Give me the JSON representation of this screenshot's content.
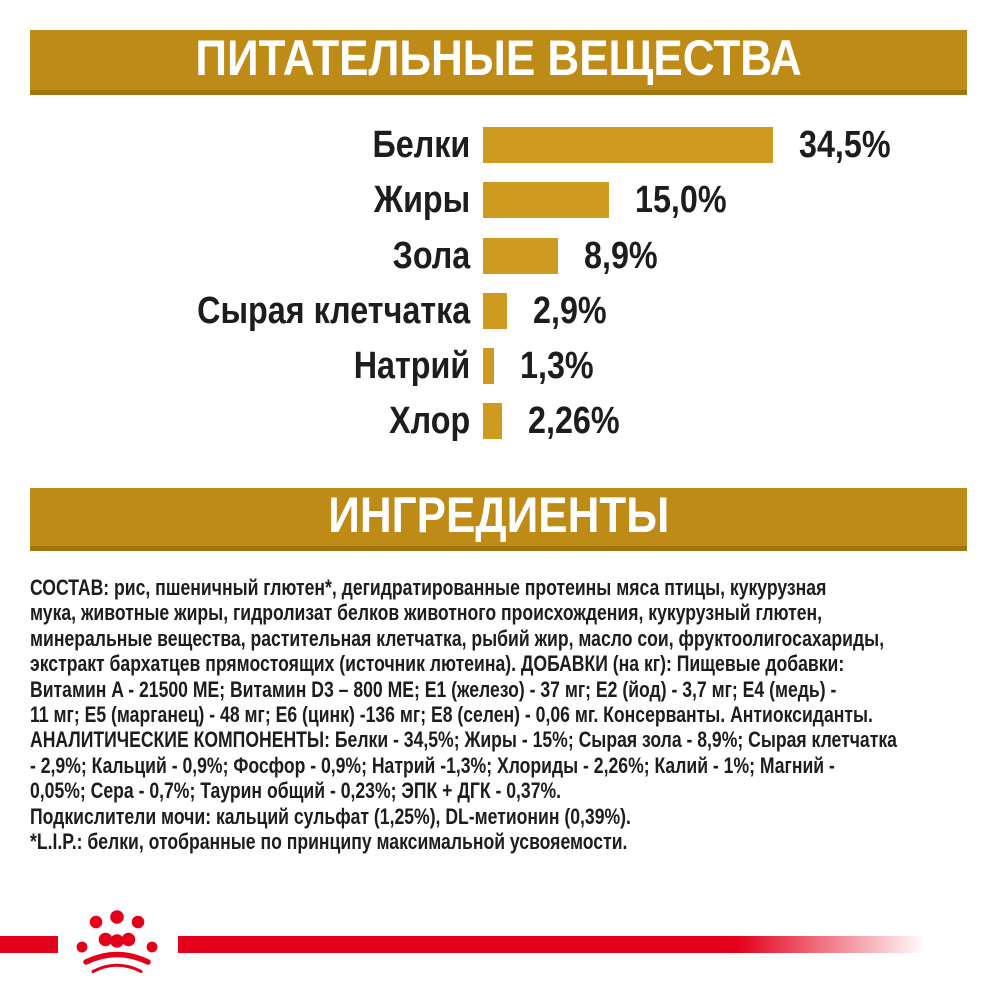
{
  "nutrients_banner": {
    "title": "ПИТАТЕЛЬНЫЕ ВЕЩЕСТВА"
  },
  "ingredients_banner": {
    "title": "ИНГРЕДИЕНТЫ"
  },
  "chart_data": {
    "type": "bar",
    "orientation": "horizontal",
    "title": "ПИТАТЕЛЬНЫЕ ВЕЩЕСТВА",
    "categories": [
      "Белки",
      "Жиры",
      "Зола",
      "Сырая клетчатка",
      "Натрий",
      "Хлор"
    ],
    "values": [
      34.5,
      15.0,
      8.9,
      2.9,
      1.3,
      2.26
    ],
    "value_labels": [
      "34,5%",
      "15,0%",
      "8,9%",
      "2,9%",
      "1,3%",
      "2,26%"
    ],
    "unit": "%",
    "xlim": [
      0,
      35
    ],
    "grid": false,
    "legend": "none",
    "bar_color": "#ce9a20"
  },
  "ingredients": {
    "text": "СОСТАВ: рис, пшеничный глютен*, дегидратированные протеины мяса птицы, кукурузная\nмука, животные жиры, гидролизат белков животного происхождения, кукурузный глютен,\nминеральные вещества, растительная клетчатка, рыбий жир, масло сои, фруктоолигосахариды,\nэкстракт бархатцев прямостоящих (источник лютеина). ДОБАВКИ (на кг): Пищевые добавки:\nВитамин A - 21500 ME; Витамин D3 – 800 ME; E1 (железо) - 37 мг; E2 (йод) - 3,7 мг; E4 (медь) -\n11 мг; E5 (марганец) - 48 мг; E6 (цинк) -136 мг; E8 (селен) - 0,06 мг. Консерванты. Антиоксиданты.\nАНАЛИТИЧЕСКИЕ КОМПОНЕНТЫ: Белки - 34,5%; Жиры - 15%; Сырая зола - 8,9%; Сырая клетчатка\n- 2,9%; Кальций - 0,9%; Фосфор - 0,9%; Натрий -1,3%; Хлориды - 2,26%; Калий - 1%; Магний -\n0,05%; Сера - 0,7%; Таурин общий - 0,23%; ЭПК + ДГК - 0,37%.\nПодкислители мочи: кальций сульфат (1,25%), DL-метионин (0,39%).\n*L.I.P.: белки, отобранные по принципу максимальной усвояемости."
  },
  "footer": {
    "brand_icon": "royal-canin-crown-icon"
  },
  "colors": {
    "banner_gold": "#be8c16",
    "banner_gold_dark": "#9f760f",
    "bar_gold": "#ce9a20",
    "brand_red": "#e2001a",
    "text": "#1d1d1b"
  }
}
